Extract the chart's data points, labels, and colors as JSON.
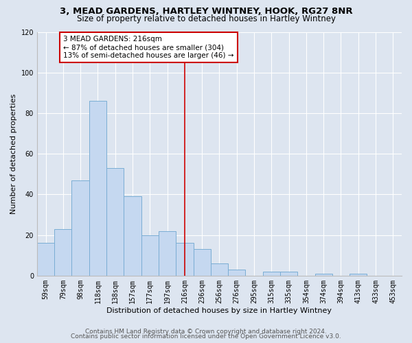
{
  "title1": "3, MEAD GARDENS, HARTLEY WINTNEY, HOOK, RG27 8NR",
  "title2": "Size of property relative to detached houses in Hartley Wintney",
  "xlabel": "Distribution of detached houses by size in Hartley Wintney",
  "ylabel": "Number of detached properties",
  "categories": [
    "59sqm",
    "79sqm",
    "98sqm",
    "118sqm",
    "138sqm",
    "157sqm",
    "177sqm",
    "197sqm",
    "216sqm",
    "236sqm",
    "256sqm",
    "276sqm",
    "295sqm",
    "315sqm",
    "335sqm",
    "354sqm",
    "374sqm",
    "394sqm",
    "413sqm",
    "433sqm",
    "453sqm"
  ],
  "values": [
    16,
    23,
    47,
    86,
    53,
    39,
    20,
    22,
    16,
    13,
    6,
    3,
    0,
    2,
    2,
    0,
    1,
    0,
    1,
    0,
    0
  ],
  "bar_color": "#c5d8f0",
  "bar_edge_color": "#7aadd4",
  "vline_x": 8,
  "vline_color": "#cc0000",
  "annotation_text": "3 MEAD GARDENS: 216sqm\n← 87% of detached houses are smaller (304)\n13% of semi-detached houses are larger (46) →",
  "annotation_box_color": "#ffffff",
  "annotation_box_edge": "#cc0000",
  "ylim": [
    0,
    120
  ],
  "yticks": [
    0,
    20,
    40,
    60,
    80,
    100,
    120
  ],
  "background_color": "#dde5f0",
  "plot_background": "#dde5f0",
  "footer1": "Contains HM Land Registry data © Crown copyright and database right 2024.",
  "footer2": "Contains public sector information licensed under the Open Government Licence v3.0.",
  "title1_fontsize": 9.5,
  "title2_fontsize": 8.5,
  "xlabel_fontsize": 8,
  "ylabel_fontsize": 8,
  "tick_fontsize": 7,
  "annotation_fontsize": 7.5,
  "footer_fontsize": 6.5
}
